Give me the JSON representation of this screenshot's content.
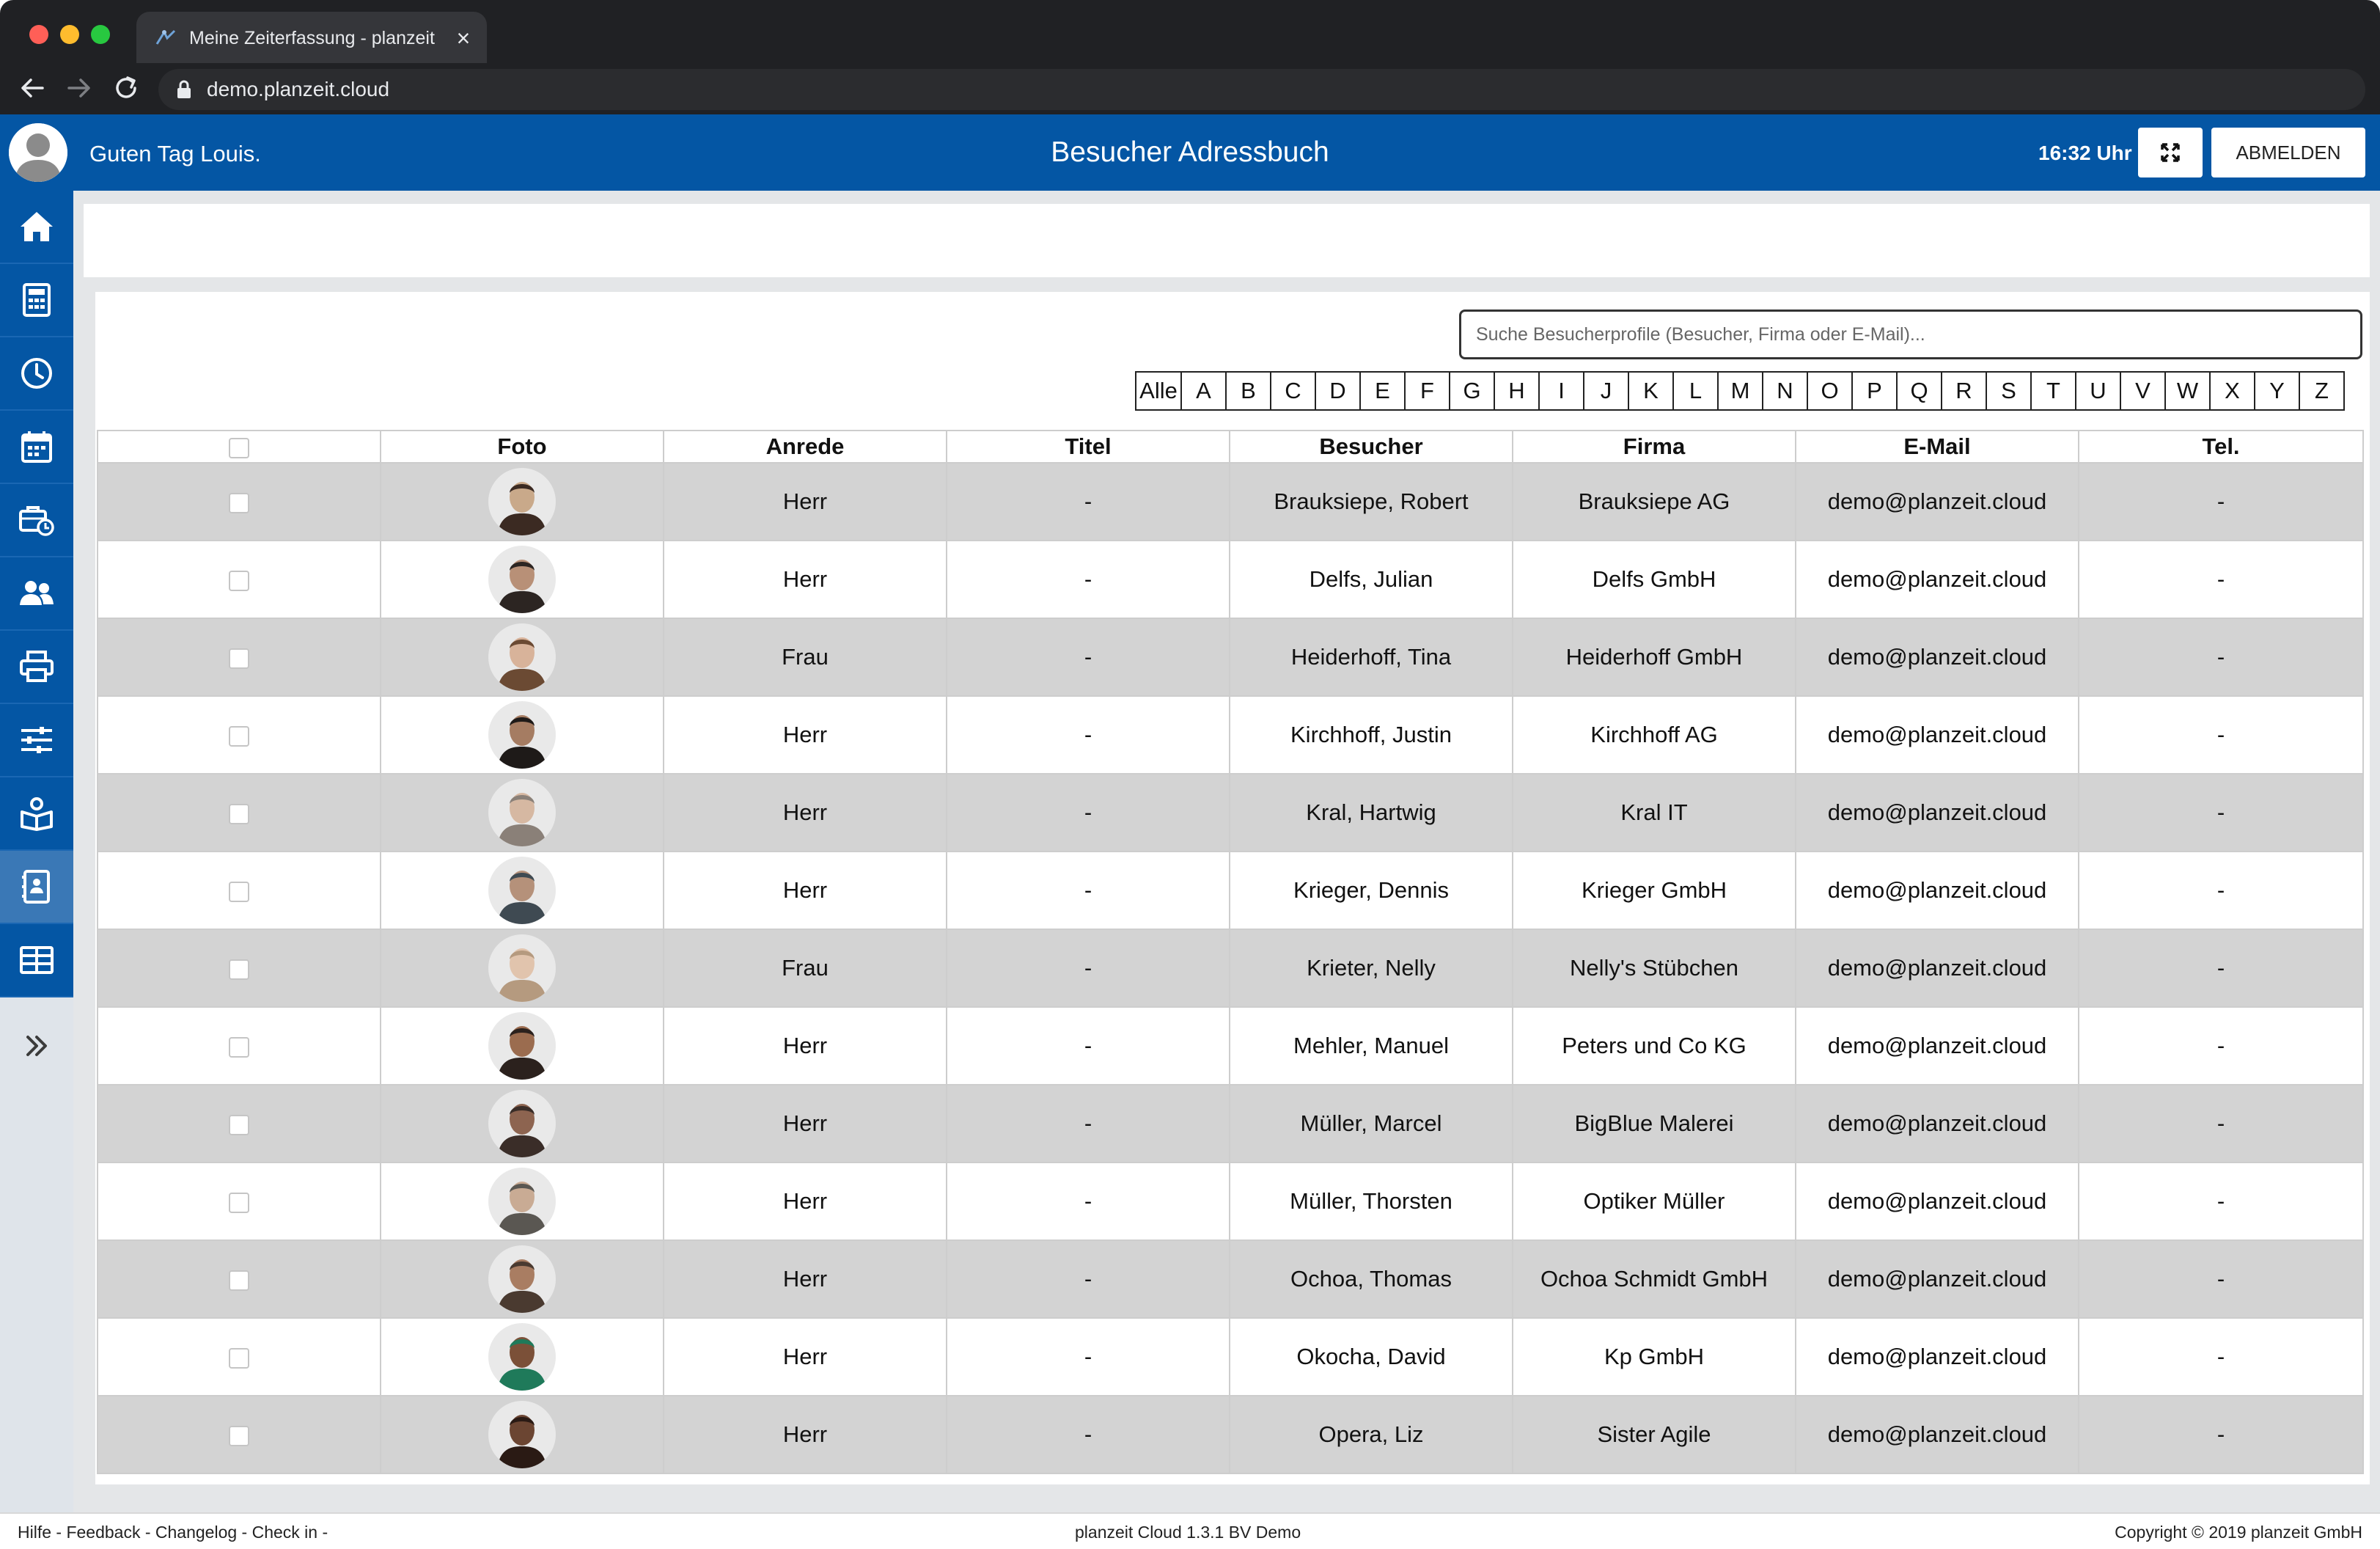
{
  "browser": {
    "tab_title": "Meine Zeiterfassung - planzeit",
    "tab_close": "×",
    "url": "demo.planzeit.cloud"
  },
  "header": {
    "greeting": "Guten Tag Louis.",
    "title": "Besucher Adressbuch",
    "clock": "16:32 Uhr",
    "logout_label": "ABMELDEN",
    "background_color": "#0456a4"
  },
  "sidebar": {
    "items": [
      {
        "icon": "home-icon"
      },
      {
        "icon": "calculator-icon"
      },
      {
        "icon": "clock-icon"
      },
      {
        "icon": "calendar-icon"
      },
      {
        "icon": "briefcase-clock-icon"
      },
      {
        "icon": "users-icon"
      },
      {
        "icon": "printer-icon"
      },
      {
        "icon": "sliders-icon"
      },
      {
        "icon": "visitor-icon"
      },
      {
        "icon": "address-book-icon",
        "active": true
      },
      {
        "icon": "table-icon"
      }
    ],
    "expand_icon": "double-chevron-right-icon"
  },
  "search": {
    "placeholder": "Suche Besucherprofile (Besucher, Firma oder E-Mail)...",
    "value": ""
  },
  "alphabet": [
    "Alle",
    "A",
    "B",
    "C",
    "D",
    "E",
    "F",
    "G",
    "H",
    "I",
    "J",
    "K",
    "L",
    "M",
    "N",
    "O",
    "P",
    "Q",
    "R",
    "S",
    "T",
    "U",
    "V",
    "W",
    "X",
    "Y",
    "Z"
  ],
  "table": {
    "columns": [
      "",
      "Foto",
      "Anrede",
      "Titel",
      "Besucher",
      "Firma",
      "E-Mail",
      "Tel."
    ],
    "rows": [
      {
        "anrede": "Herr",
        "titel": "-",
        "besucher": "Brauksiepe, Robert",
        "firma": "Brauksiepe AG",
        "email": "demo@planzeit.cloud",
        "tel": "-"
      },
      {
        "anrede": "Herr",
        "titel": "-",
        "besucher": "Delfs, Julian",
        "firma": "Delfs GmbH",
        "email": "demo@planzeit.cloud",
        "tel": "-"
      },
      {
        "anrede": "Frau",
        "titel": "-",
        "besucher": "Heiderhoff, Tina",
        "firma": "Heiderhoff GmbH",
        "email": "demo@planzeit.cloud",
        "tel": "-"
      },
      {
        "anrede": "Herr",
        "titel": "-",
        "besucher": "Kirchhoff, Justin",
        "firma": "Kirchhoff AG",
        "email": "demo@planzeit.cloud",
        "tel": "-"
      },
      {
        "anrede": "Herr",
        "titel": "-",
        "besucher": "Kral, Hartwig",
        "firma": "Kral IT",
        "email": "demo@planzeit.cloud",
        "tel": "-"
      },
      {
        "anrede": "Herr",
        "titel": "-",
        "besucher": "Krieger, Dennis",
        "firma": "Krieger GmbH",
        "email": "demo@planzeit.cloud",
        "tel": "-"
      },
      {
        "anrede": "Frau",
        "titel": "-",
        "besucher": "Krieter, Nelly",
        "firma": "Nelly's Stübchen",
        "email": "demo@planzeit.cloud",
        "tel": "-"
      },
      {
        "anrede": "Herr",
        "titel": "-",
        "besucher": "Mehler, Manuel",
        "firma": "Peters und Co KG",
        "email": "demo@planzeit.cloud",
        "tel": "-"
      },
      {
        "anrede": "Herr",
        "titel": "-",
        "besucher": "Müller, Marcel",
        "firma": "BigBlue Malerei",
        "email": "demo@planzeit.cloud",
        "tel": "-"
      },
      {
        "anrede": "Herr",
        "titel": "-",
        "besucher": "Müller, Thorsten",
        "firma": "Optiker Müller",
        "email": "demo@planzeit.cloud",
        "tel": "-"
      },
      {
        "anrede": "Herr",
        "titel": "-",
        "besucher": "Ochoa, Thomas",
        "firma": "Ochoa Schmidt GmbH",
        "email": "demo@planzeit.cloud",
        "tel": "-"
      },
      {
        "anrede": "Herr",
        "titel": "-",
        "besucher": "Okocha, David",
        "firma": "Kp GmbH",
        "email": "demo@planzeit.cloud",
        "tel": "-"
      },
      {
        "anrede": "Herr",
        "titel": "-",
        "besucher": "Opera, Liz",
        "firma": "Sister Agile",
        "email": "demo@planzeit.cloud",
        "tel": "-"
      }
    ]
  },
  "footer": {
    "links": "Hilfe - Feedback - Changelog - Check in -",
    "version": "planzeit Cloud 1.3.1 BV Demo",
    "copyright": "Copyright © 2019 planzeit GmbH"
  }
}
